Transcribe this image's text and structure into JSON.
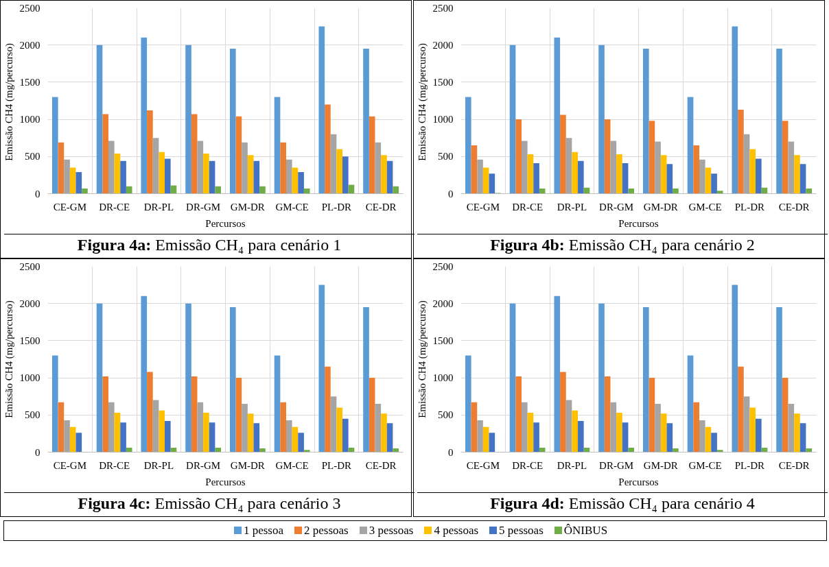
{
  "chart_data": [
    {
      "type": "bar",
      "title": "Figura 4a: Emissão CH₄ para cenário 1",
      "xlabel": "Percursos",
      "ylabel": "Emissão CH4  (mg/percurso)",
      "categories": [
        "CE-GM",
        "DR-CE",
        "DR-PL",
        "DR-GM",
        "GM-DR",
        "GM-CE",
        "PL-DR",
        "CE-DR"
      ],
      "series": [
        {
          "name": "1 pessoa",
          "color": "#5b9bd5",
          "values": [
            1300,
            2000,
            2100,
            2000,
            1950,
            1300,
            2250,
            1950
          ]
        },
        {
          "name": "2 pessoas",
          "color": "#ed7d31",
          "values": [
            690,
            1070,
            1120,
            1070,
            1040,
            690,
            1200,
            1040
          ]
        },
        {
          "name": "3 pessoas",
          "color": "#a5a5a5",
          "values": [
            460,
            710,
            750,
            710,
            690,
            460,
            800,
            690
          ]
        },
        {
          "name": "4 pessoas",
          "color": "#ffc000",
          "values": [
            350,
            540,
            560,
            540,
            520,
            350,
            600,
            520
          ]
        },
        {
          "name": "5 pessoas",
          "color": "#4472c4",
          "values": [
            290,
            440,
            470,
            440,
            440,
            290,
            500,
            440
          ]
        },
        {
          "name": "ÔNIBUS",
          "color": "#70ad47",
          "values": [
            70,
            100,
            110,
            100,
            100,
            70,
            120,
            100
          ]
        }
      ],
      "ylim": [
        0,
        2500
      ],
      "yticks": [
        0,
        500,
        1000,
        1500,
        2000,
        2500
      ],
      "grid": true,
      "legend": "bottom"
    },
    {
      "type": "bar",
      "title": "Figura 4b: Emissão CH₄ para cenário 2",
      "xlabel": "Percursos",
      "ylabel": "Emissão CH4  (mg/percurso)",
      "categories": [
        "CE-GM",
        "DR-CE",
        "DR-PL",
        "DR-GM",
        "GM-DR",
        "GM-CE",
        "PL-DR",
        "CE-DR"
      ],
      "series": [
        {
          "name": "1 pessoa",
          "color": "#5b9bd5",
          "values": [
            1300,
            2000,
            2100,
            2000,
            1950,
            1300,
            2250,
            1950
          ]
        },
        {
          "name": "2 pessoas",
          "color": "#ed7d31",
          "values": [
            650,
            1000,
            1060,
            1000,
            980,
            650,
            1130,
            980
          ]
        },
        {
          "name": "3 pessoas",
          "color": "#a5a5a5",
          "values": [
            460,
            710,
            750,
            710,
            700,
            460,
            800,
            700
          ]
        },
        {
          "name": "4 pessoas",
          "color": "#ffc000",
          "values": [
            350,
            530,
            560,
            530,
            520,
            350,
            600,
            520
          ]
        },
        {
          "name": "5 pessoas",
          "color": "#4472c4",
          "values": [
            270,
            410,
            440,
            410,
            400,
            270,
            470,
            400
          ]
        },
        {
          "name": "ÔNIBUS",
          "color": "#70ad47",
          "values": [
            10,
            70,
            80,
            70,
            70,
            40,
            80,
            70
          ]
        }
      ],
      "ylim": [
        0,
        2500
      ],
      "yticks": [
        0,
        500,
        1000,
        1500,
        2000,
        2500
      ],
      "grid": true,
      "legend": "bottom"
    },
    {
      "type": "bar",
      "title": "Figura 4c: Emissão CH₄ para cenário 3",
      "xlabel": "Percursos",
      "ylabel": "Emissão CH4 (mg/percurso)",
      "categories": [
        "CE-GM",
        "DR-CE",
        "DR-PL",
        "DR-GM",
        "GM-DR",
        "GM-CE",
        "PL-DR",
        "CE-DR"
      ],
      "series": [
        {
          "name": "1 pessoa",
          "color": "#5b9bd5",
          "values": [
            1300,
            2000,
            2100,
            2000,
            1950,
            1300,
            2250,
            1950
          ]
        },
        {
          "name": "2 pessoas",
          "color": "#ed7d31",
          "values": [
            670,
            1020,
            1080,
            1020,
            1000,
            670,
            1150,
            1000
          ]
        },
        {
          "name": "3 pessoas",
          "color": "#a5a5a5",
          "values": [
            430,
            670,
            700,
            670,
            650,
            430,
            750,
            650
          ]
        },
        {
          "name": "4 pessoas",
          "color": "#ffc000",
          "values": [
            340,
            530,
            560,
            530,
            520,
            340,
            600,
            520
          ]
        },
        {
          "name": "5 pessoas",
          "color": "#4472c4",
          "values": [
            260,
            400,
            420,
            400,
            390,
            260,
            450,
            390
          ]
        },
        {
          "name": "ÔNIBUS",
          "color": "#70ad47",
          "values": [
            0,
            60,
            60,
            60,
            50,
            30,
            60,
            50
          ]
        }
      ],
      "ylim": [
        0,
        2500
      ],
      "yticks": [
        0,
        500,
        1000,
        1500,
        2000,
        2500
      ],
      "grid": true,
      "legend": "bottom"
    },
    {
      "type": "bar",
      "title": "Figura 4d: Emissão CH₄ para cenário 4",
      "xlabel": "Percursos",
      "ylabel": "Emissão CH4 (mg/percurso)",
      "categories": [
        "CE-GM",
        "DR-CE",
        "DR-PL",
        "DR-GM",
        "GM-DR",
        "GM-CE",
        "PL-DR",
        "CE-DR"
      ],
      "series": [
        {
          "name": "1 pessoa",
          "color": "#5b9bd5",
          "values": [
            1300,
            2000,
            2100,
            2000,
            1950,
            1300,
            2250,
            1950
          ]
        },
        {
          "name": "2 pessoas",
          "color": "#ed7d31",
          "values": [
            670,
            1020,
            1080,
            1020,
            1000,
            670,
            1150,
            1000
          ]
        },
        {
          "name": "3 pessoas",
          "color": "#a5a5a5",
          "values": [
            430,
            670,
            700,
            670,
            650,
            430,
            750,
            650
          ]
        },
        {
          "name": "4 pessoas",
          "color": "#ffc000",
          "values": [
            340,
            530,
            560,
            530,
            520,
            340,
            600,
            520
          ]
        },
        {
          "name": "5 pessoas",
          "color": "#4472c4",
          "values": [
            260,
            400,
            420,
            400,
            390,
            260,
            450,
            390
          ]
        },
        {
          "name": "ÔNIBUS",
          "color": "#70ad47",
          "values": [
            0,
            60,
            60,
            60,
            50,
            30,
            60,
            50
          ]
        }
      ],
      "ylim": [
        0,
        2500
      ],
      "yticks": [
        0,
        500,
        1000,
        1500,
        2000,
        2500
      ],
      "grid": true,
      "legend": "bottom"
    }
  ]
}
